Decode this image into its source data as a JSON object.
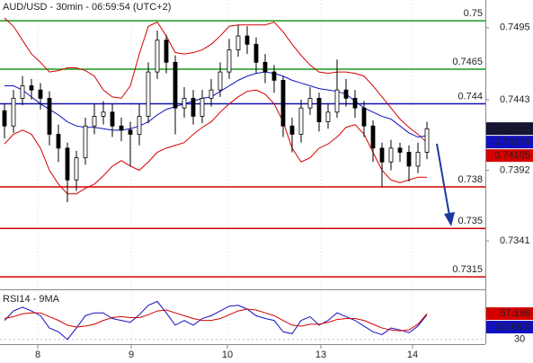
{
  "chart_data": {
    "type": "candlestick",
    "title": "AUD/USD - 30min - 06:59:54 (UTC+2)",
    "x_labels": [
      "8",
      "9",
      "10",
      "13",
      "14"
    ],
    "open": [
      0.7435,
      0.7424,
      0.7444,
      0.7453,
      0.745,
      0.7444,
      0.7418,
      0.7408,
      0.7385,
      0.7401,
      0.7424,
      0.7431,
      0.7434,
      0.7424,
      0.7421,
      0.7418,
      0.7431,
      0.7463,
      0.7486,
      0.747,
      0.7437,
      0.7444,
      0.7431,
      0.7444,
      0.745,
      0.7463,
      0.7479,
      0.7489,
      0.7483,
      0.747,
      0.7463,
      0.7457,
      0.7424,
      0.7418,
      0.7437,
      0.7444,
      0.7427,
      0.7434,
      0.745,
      0.7444,
      0.7437,
      0.7424,
      0.7408,
      0.7398,
      0.7408,
      0.7405,
      0.7395,
      0.7405
    ],
    "high": [
      0.744,
      0.745,
      0.746,
      0.7458,
      0.7455,
      0.7449,
      0.7425,
      0.7412,
      0.7406,
      0.743,
      0.744,
      0.7442,
      0.744,
      0.743,
      0.7427,
      0.744,
      0.747,
      0.7493,
      0.749,
      0.7475,
      0.7452,
      0.745,
      0.745,
      0.7458,
      0.747,
      0.7487,
      0.7497,
      0.7496,
      0.7488,
      0.7476,
      0.7468,
      0.746,
      0.743,
      0.7443,
      0.7452,
      0.7448,
      0.744,
      0.7472,
      0.7458,
      0.745,
      0.7442,
      0.7428,
      0.7412,
      0.7414,
      0.7412,
      0.741,
      0.7412,
      0.7427
    ],
    "low": [
      0.7415,
      0.7419,
      0.7439,
      0.7443,
      0.7436,
      0.741,
      0.7398,
      0.7369,
      0.7377,
      0.7396,
      0.7418,
      0.7425,
      0.7416,
      0.7413,
      0.7395,
      0.741,
      0.7426,
      0.7458,
      0.7462,
      0.7418,
      0.743,
      0.7425,
      0.7426,
      0.7438,
      0.7445,
      0.7458,
      0.7474,
      0.7476,
      0.7462,
      0.7455,
      0.7448,
      0.7416,
      0.7405,
      0.7412,
      0.7432,
      0.742,
      0.7422,
      0.743,
      0.7438,
      0.743,
      0.7416,
      0.7398,
      0.738,
      0.7392,
      0.7398,
      0.7384,
      0.739,
      0.74
    ],
    "close": [
      0.7424,
      0.7444,
      0.7453,
      0.745,
      0.7444,
      0.7418,
      0.7408,
      0.7385,
      0.7401,
      0.7424,
      0.7431,
      0.7434,
      0.7424,
      0.7421,
      0.7418,
      0.7431,
      0.7463,
      0.7486,
      0.747,
      0.7437,
      0.7444,
      0.7431,
      0.7444,
      0.745,
      0.7463,
      0.7479,
      0.7489,
      0.7483,
      0.747,
      0.7463,
      0.7457,
      0.7424,
      0.7418,
      0.7437,
      0.7444,
      0.7427,
      0.7434,
      0.745,
      0.7444,
      0.7437,
      0.7424,
      0.7408,
      0.7398,
      0.7408,
      0.7405,
      0.7395,
      0.7405,
      0.7422
    ],
    "series": [
      {
        "color": "#d40000",
        "values": [
          0.7502,
          0.7496,
          0.7486,
          0.7476,
          0.747,
          0.7463,
          0.7464,
          0.7466,
          0.7466,
          0.7464,
          0.746,
          0.745,
          0.7445,
          0.7444,
          0.7453,
          0.7476,
          0.7496,
          0.7499,
          0.7489,
          0.7477,
          0.7476,
          0.7477,
          0.7479,
          0.7483,
          0.7489,
          0.7496,
          0.7497,
          0.7497,
          0.7497,
          0.7497,
          0.7499,
          0.7492,
          0.7483,
          0.7475,
          0.7468,
          0.7463,
          0.7462,
          0.7463,
          0.7463,
          0.7462,
          0.746,
          0.7453,
          0.7445,
          0.7437,
          0.7429,
          0.7423,
          0.7418,
          0.7412
        ]
      },
      {
        "color": "#1010c0",
        "values": [
          0.7453,
          0.7453,
          0.745,
          0.7445,
          0.744,
          0.7436,
          0.7432,
          0.7427,
          0.7424,
          0.7423,
          0.7423,
          0.7422,
          0.7421,
          0.7421,
          0.7422,
          0.7424,
          0.7427,
          0.7432,
          0.7436,
          0.7438,
          0.744,
          0.7442,
          0.7444,
          0.7445,
          0.7449,
          0.7453,
          0.7457,
          0.746,
          0.7462,
          0.7463,
          0.7462,
          0.746,
          0.7457,
          0.7455,
          0.7453,
          0.7451,
          0.745,
          0.7449,
          0.7447,
          0.7442,
          0.7437,
          0.7434,
          0.7431,
          0.7429,
          0.7424,
          0.7419,
          0.7416,
          0.7417
        ]
      },
      {
        "color": "#d40000",
        "values": [
          0.7411,
          0.7418,
          0.7421,
          0.7418,
          0.7408,
          0.7392,
          0.7382,
          0.7375,
          0.7375,
          0.7379,
          0.7382,
          0.7388,
          0.7395,
          0.7399,
          0.7395,
          0.7392,
          0.7398,
          0.7405,
          0.7408,
          0.741,
          0.7412,
          0.7418,
          0.7423,
          0.7427,
          0.7434,
          0.744,
          0.7445,
          0.7449,
          0.745,
          0.7447,
          0.744,
          0.7427,
          0.7408,
          0.7398,
          0.7401,
          0.7408,
          0.7411,
          0.7416,
          0.7423,
          0.7425,
          0.7418,
          0.7405,
          0.7392,
          0.7385,
          0.7383,
          0.7385,
          0.7387,
          0.7387
        ]
      }
    ],
    "levels": [
      {
        "value": 0.75,
        "color": "#1a9a1a"
      },
      {
        "value": 0.7465,
        "color": "#1a9a1a"
      },
      {
        "value": 0.744,
        "color": "#1010b0"
      },
      {
        "value": 0.738,
        "color": "#d40000"
      },
      {
        "value": 0.735,
        "color": "#d40000"
      },
      {
        "value": 0.7315,
        "color": "#d40000"
      }
    ],
    "ylim": [
      0.7306,
      0.7515
    ],
    "yticks": [
      0.7495,
      0.7443,
      0.7392,
      0.7341
    ],
    "price_labels": [
      {
        "value": 0.74221,
        "color": "#141432"
      },
      {
        "value": 0.74174,
        "color": "#1010c0"
      },
      {
        "value": 0.74105,
        "color": "#d40000"
      }
    ],
    "rsi": {
      "title": "RSI14 - 9MA",
      "ylim": [
        25,
        80
      ],
      "yticks": [
        30
      ],
      "series": [
        {
          "color": "#1010c0",
          "values": [
            50,
            60,
            64,
            60,
            55,
            42,
            38,
            30,
            42,
            55,
            58,
            58,
            52,
            50,
            48,
            56,
            66,
            70,
            58,
            45,
            50,
            45,
            52,
            55,
            60,
            65,
            66,
            62,
            55,
            52,
            50,
            38,
            36,
            50,
            54,
            45,
            50,
            58,
            54,
            50,
            44,
            38,
            35,
            42,
            40,
            37,
            44,
            56
          ]
        },
        {
          "color": "#d40000",
          "values": [
            52,
            54,
            57,
            58,
            58,
            54,
            50,
            45,
            43,
            44,
            46,
            50,
            53,
            54,
            53,
            53,
            56,
            60,
            61,
            58,
            55,
            52,
            50,
            50,
            52,
            56,
            60,
            62,
            61,
            58,
            55,
            50,
            45,
            44,
            46,
            46,
            48,
            51,
            52,
            52,
            50,
            46,
            42,
            40,
            39,
            40,
            46,
            57
          ]
        }
      ],
      "price_labels": [
        {
          "value": 57.196,
          "color": "#d40000"
        },
        {
          "value": 55.9905,
          "color": "#1010c0"
        }
      ]
    }
  }
}
